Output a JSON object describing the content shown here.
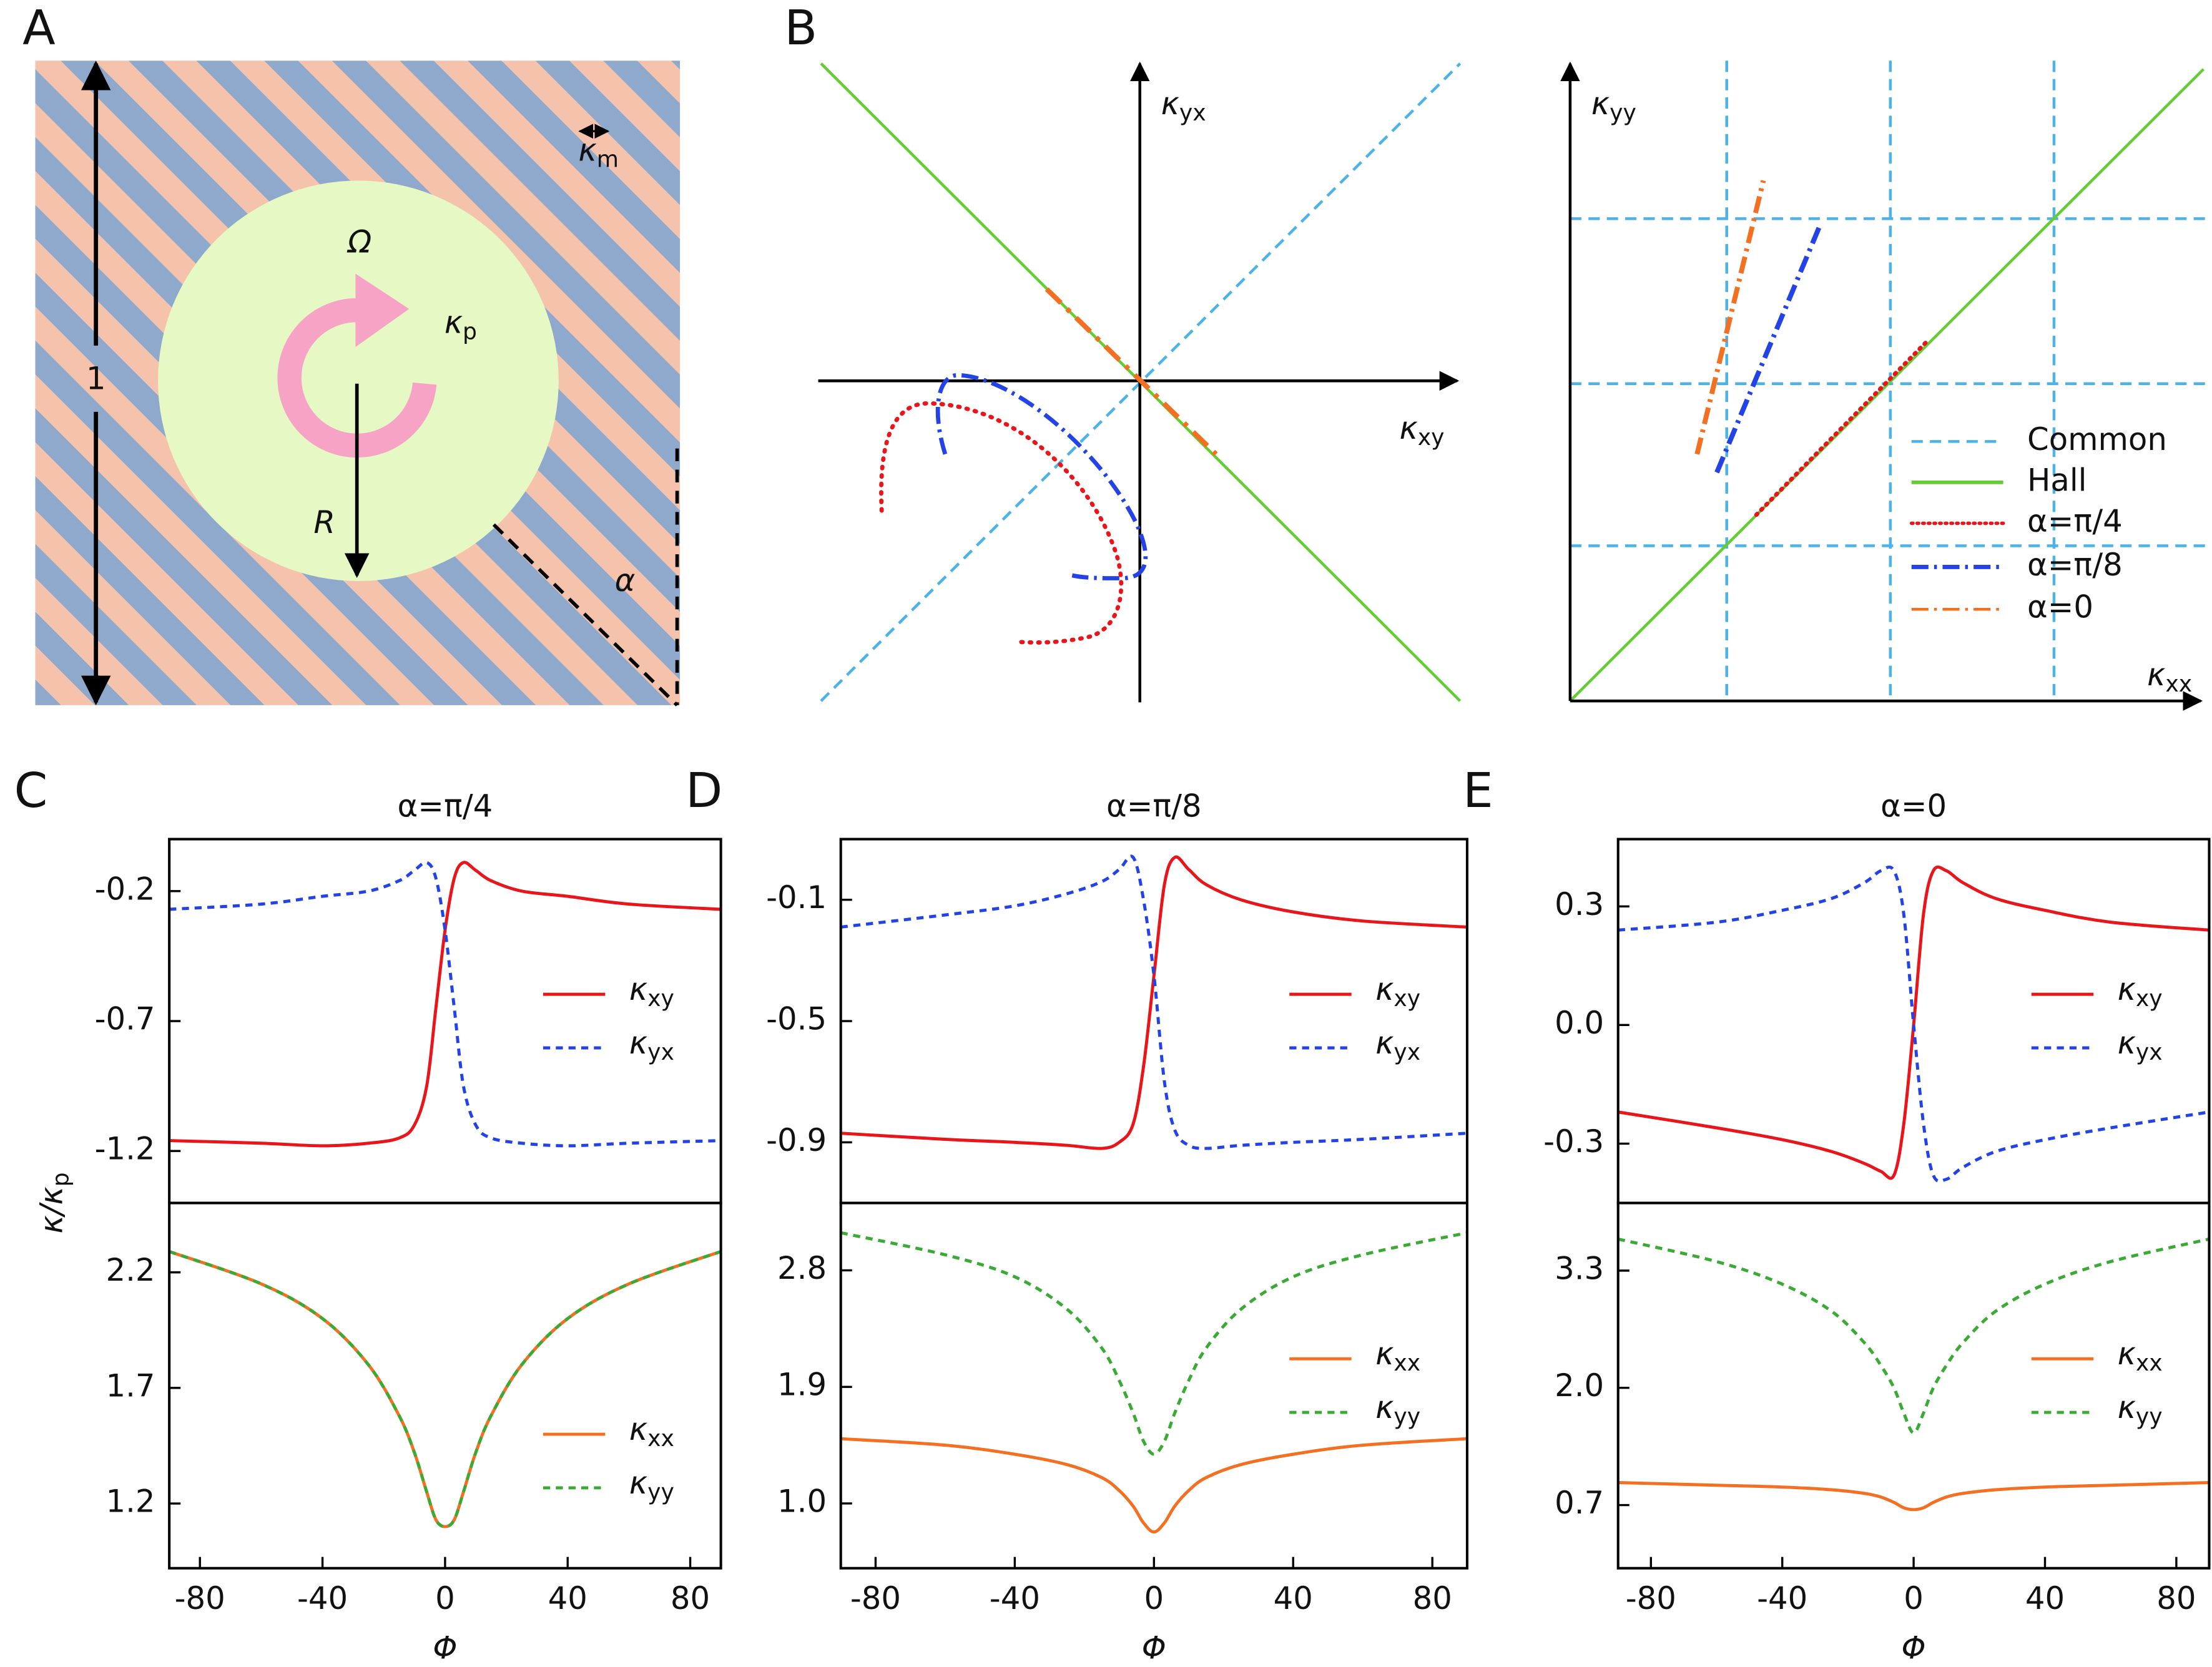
{
  "panel_a": {
    "label": "A",
    "length": "1",
    "stripe_period": "κm",
    "rotation": "Ω",
    "particle": "κp",
    "radius": "R",
    "angle": "α"
  },
  "panel_b": {
    "label": "B",
    "left": {
      "x_axis": "κxy",
      "y_axis": "κyx"
    },
    "right": {
      "x_axis": "κxx",
      "y_axis": "κyy",
      "legend": [
        "Common",
        "Hall",
        "α=π/4",
        "α=π/8",
        "α=0"
      ]
    }
  },
  "chart_data": [
    {
      "type": "line",
      "panel_label": "C",
      "title": "α=π/4",
      "ylabel": "κ/κp",
      "legend": "center right",
      "x": [
        -90,
        -60,
        -40,
        -25,
        -15,
        -10,
        -6,
        -3,
        0,
        3,
        6,
        10,
        15,
        25,
        40,
        60,
        90
      ],
      "xlim": [
        -90,
        90
      ],
      "ylim": [
        -1.4,
        0.0
      ],
      "yticks": [
        -0.2,
        -0.7,
        -1.2
      ],
      "series": [
        {
          "name": "κxy",
          "color": "#e8161b",
          "style": "solid",
          "values": [
            -1.16,
            -1.17,
            -1.18,
            -1.17,
            -1.15,
            -1.1,
            -0.95,
            -0.65,
            -0.35,
            -0.15,
            -0.09,
            -0.12,
            -0.16,
            -0.2,
            -0.22,
            -0.25,
            -0.27
          ]
        },
        {
          "name": "κyx",
          "color": "#2443e6",
          "style": "dashed",
          "values": [
            -0.27,
            -0.25,
            -0.22,
            -0.2,
            -0.16,
            -0.12,
            -0.09,
            -0.15,
            -0.35,
            -0.65,
            -0.95,
            -1.1,
            -1.15,
            -1.17,
            -1.18,
            -1.17,
            -1.16
          ]
        }
      ]
    },
    {
      "type": "line",
      "xlabel": "Φ",
      "legend": "lower right",
      "x": [
        -90,
        -60,
        -40,
        -25,
        -15,
        -10,
        -6,
        -3,
        0,
        3,
        6,
        10,
        15,
        25,
        40,
        60,
        90
      ],
      "xlim": [
        -90,
        90
      ],
      "ylim": [
        0.92,
        2.5
      ],
      "yticks": [
        2.2,
        1.7,
        1.2
      ],
      "xticks": [
        -80,
        -40,
        0,
        40,
        80
      ],
      "series": [
        {
          "name": "κxx",
          "color": "#f36f21",
          "style": "solid",
          "values": [
            2.29,
            2.15,
            2.0,
            1.8,
            1.58,
            1.42,
            1.25,
            1.13,
            1.1,
            1.13,
            1.25,
            1.42,
            1.58,
            1.8,
            2.0,
            2.15,
            2.29
          ]
        },
        {
          "name": "κyy",
          "color": "#3aaa35",
          "style": "dashed",
          "values": [
            2.29,
            2.15,
            2.0,
            1.8,
            1.58,
            1.42,
            1.25,
            1.13,
            1.1,
            1.13,
            1.25,
            1.42,
            1.58,
            1.8,
            2.0,
            2.15,
            2.29
          ]
        }
      ]
    },
    {
      "type": "line",
      "panel_label": "D",
      "title": "α=π/8",
      "legend": "center right",
      "x": [
        -90,
        -60,
        -40,
        -25,
        -15,
        -10,
        -6,
        -3,
        0,
        3,
        6,
        10,
        15,
        25,
        40,
        60,
        90
      ],
      "xlim": [
        -90,
        90
      ],
      "ylim": [
        -1.1,
        0.1
      ],
      "yticks": [
        -0.1,
        -0.5,
        -0.9
      ],
      "series": [
        {
          "name": "κxy",
          "color": "#e8161b",
          "style": "solid",
          "values": [
            -0.87,
            -0.89,
            -0.9,
            -0.91,
            -0.92,
            -0.9,
            -0.84,
            -0.65,
            -0.35,
            -0.05,
            0.04,
            0.0,
            -0.05,
            -0.1,
            -0.14,
            -0.17,
            -0.19
          ]
        },
        {
          "name": "κyx",
          "color": "#2443e6",
          "style": "dashed",
          "values": [
            -0.19,
            -0.15,
            -0.12,
            -0.08,
            -0.04,
            0.0,
            0.04,
            -0.1,
            -0.35,
            -0.7,
            -0.86,
            -0.91,
            -0.92,
            -0.91,
            -0.9,
            -0.89,
            -0.87
          ]
        }
      ]
    },
    {
      "type": "line",
      "xlabel": "Φ",
      "legend": "center right",
      "x": [
        -90,
        -60,
        -40,
        -25,
        -15,
        -10,
        -6,
        -3,
        0,
        3,
        6,
        10,
        15,
        25,
        40,
        60,
        90
      ],
      "xlim": [
        -90,
        90
      ],
      "ylim": [
        0.5,
        3.32
      ],
      "yticks": [
        2.8,
        1.9,
        {
          "value": 1.0,
          "label": "1.0"
        }
      ],
      "xticks": [
        -80,
        -40,
        0,
        40,
        80
      ],
      "series": [
        {
          "name": "κxx",
          "color": "#f36f21",
          "style": "solid",
          "values": [
            1.5,
            1.45,
            1.38,
            1.3,
            1.2,
            1.1,
            0.98,
            0.85,
            0.78,
            0.85,
            0.98,
            1.1,
            1.2,
            1.3,
            1.38,
            1.45,
            1.5
          ]
        },
        {
          "name": "κyy",
          "color": "#3aaa35",
          "style": "dashed",
          "values": [
            3.09,
            2.92,
            2.75,
            2.5,
            2.2,
            1.95,
            1.7,
            1.48,
            1.38,
            1.48,
            1.7,
            1.95,
            2.2,
            2.5,
            2.75,
            2.92,
            3.09
          ]
        }
      ]
    },
    {
      "type": "line",
      "panel_label": "E",
      "title": "α=0",
      "legend": "center right",
      "x": [
        -90,
        -60,
        -40,
        -25,
        -15,
        -10,
        -6,
        -3,
        0,
        3,
        6,
        10,
        15,
        25,
        40,
        60,
        90
      ],
      "xlim": [
        -90,
        90
      ],
      "ylim": [
        -0.45,
        0.47
      ],
      "yticks": [
        0.3,
        {
          "value": 0.0,
          "label": "0.0"
        },
        -0.3
      ],
      "series": [
        {
          "name": "κxy",
          "color": "#e8161b",
          "style": "solid",
          "values": [
            -0.22,
            -0.26,
            -0.29,
            -0.32,
            -0.35,
            -0.37,
            -0.38,
            -0.25,
            0.0,
            0.28,
            0.39,
            0.39,
            0.36,
            0.32,
            0.29,
            0.26,
            0.24
          ]
        },
        {
          "name": "κyx",
          "color": "#2443e6",
          "style": "dashed",
          "values": [
            0.24,
            0.26,
            0.29,
            0.32,
            0.36,
            0.39,
            0.39,
            0.28,
            0.0,
            -0.25,
            -0.38,
            -0.39,
            -0.36,
            -0.32,
            -0.29,
            -0.26,
            -0.22
          ]
        }
      ]
    },
    {
      "type": "line",
      "xlabel": "Φ",
      "legend": "center right",
      "x": [
        -90,
        -60,
        -40,
        -25,
        -15,
        -10,
        -6,
        -3,
        0,
        3,
        6,
        10,
        15,
        25,
        40,
        60,
        90
      ],
      "xlim": [
        -90,
        90
      ],
      "ylim": [
        0.0,
        4.05
      ],
      "yticks": [
        3.3,
        {
          "value": 2.0,
          "label": "2.0"
        },
        0.7
      ],
      "xticks": [
        -80,
        -40,
        0,
        40,
        80
      ],
      "series": [
        {
          "name": "κxx",
          "color": "#f36f21",
          "style": "solid",
          "values": [
            0.95,
            0.92,
            0.9,
            0.87,
            0.83,
            0.79,
            0.73,
            0.67,
            0.65,
            0.67,
            0.73,
            0.79,
            0.83,
            0.87,
            0.9,
            0.92,
            0.95
          ]
        },
        {
          "name": "κyy",
          "color": "#3aaa35",
          "style": "dashed",
          "values": [
            3.65,
            3.4,
            3.15,
            2.85,
            2.5,
            2.25,
            2.0,
            1.72,
            1.5,
            1.72,
            2.0,
            2.25,
            2.5,
            2.85,
            3.15,
            3.4,
            3.65
          ]
        }
      ]
    }
  ]
}
